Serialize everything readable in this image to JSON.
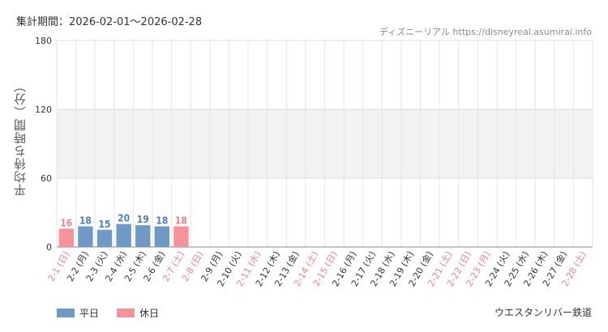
{
  "header": {
    "period": "集計期間：2026-02-01～2026-02-28",
    "site": "ディズニーリアル https://disneyreal.asumirai.info"
  },
  "footer": {
    "attraction": "ウエスタンリバー鉄道"
  },
  "colors": {
    "weekday": "#6f9ac6",
    "holiday": "#f6939a",
    "weekday_label": "#4d7fb8",
    "holiday_label": "#f07f87",
    "band": "#f2f2f2"
  },
  "chart_data": {
    "type": "bar",
    "ylabel": "平均待ち時間（分）",
    "ylim": [
      0,
      180
    ],
    "yticks": [
      0,
      60,
      120,
      180
    ],
    "shaded_band": [
      60,
      120
    ],
    "grid": true,
    "legend_position": "bottom-left",
    "categories": [
      "2-1 (日)",
      "2-2 (月)",
      "2-3 (火)",
      "2-4 (水)",
      "2-5 (木)",
      "2-6 (金)",
      "2-7 (土)",
      "2-8 (日)",
      "2-9 (月)",
      "2-10 (火)",
      "2-11 (水)",
      "2-12 (木)",
      "2-13 (金)",
      "2-14 (土)",
      "2-15 (日)",
      "2-16 (月)",
      "2-17 (火)",
      "2-18 (水)",
      "2-19 (木)",
      "2-20 (金)",
      "2-21 (土)",
      "2-22 (日)",
      "2-23 (月)",
      "2-24 (火)",
      "2-25 (水)",
      "2-26 (木)",
      "2-27 (金)",
      "2-28 (土)"
    ],
    "day_type": [
      "holiday",
      "weekday",
      "weekday",
      "weekday",
      "weekday",
      "weekday",
      "holiday",
      "holiday",
      "weekday",
      "weekday",
      "holiday",
      "weekday",
      "weekday",
      "holiday",
      "holiday",
      "weekday",
      "weekday",
      "weekday",
      "weekday",
      "weekday",
      "holiday",
      "holiday",
      "holiday",
      "weekday",
      "weekday",
      "weekday",
      "weekday",
      "holiday"
    ],
    "values": [
      16,
      18,
      15,
      20,
      19,
      18,
      18,
      null,
      null,
      null,
      null,
      null,
      null,
      null,
      null,
      null,
      null,
      null,
      null,
      null,
      null,
      null,
      null,
      null,
      null,
      null,
      null,
      null
    ],
    "series": [
      {
        "name": "平日"
      },
      {
        "name": "休日"
      }
    ]
  }
}
